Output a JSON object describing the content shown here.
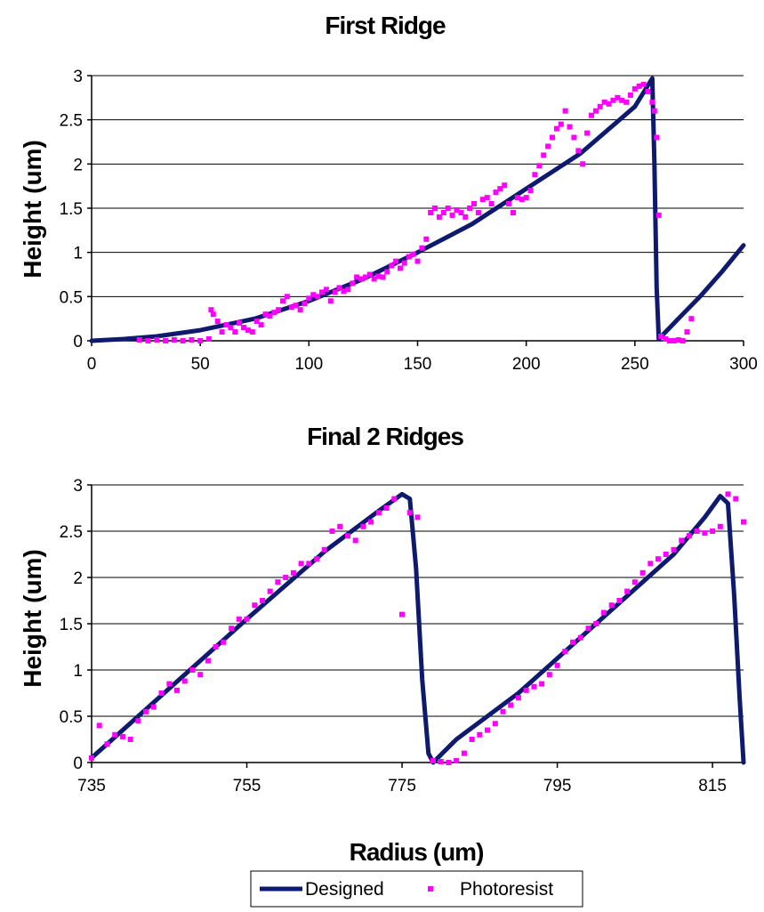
{
  "colors": {
    "designed": "#0d1a6e",
    "photoresist": "#ff00ff",
    "grid": "#000000"
  },
  "legend": {
    "placement": "bottom-center",
    "designed_label": "Designed",
    "photoresist_label": "Photoresist"
  },
  "shared_xlabel": "Radius (um)",
  "chart_data": [
    {
      "type": "line",
      "title": "First Ridge",
      "xlabel": "",
      "ylabel": "Height (um)",
      "xlim": [
        0,
        300
      ],
      "ylim": [
        0,
        3
      ],
      "xticks": [
        "0",
        "50",
        "100",
        "150",
        "200",
        "250",
        "300"
      ],
      "yticks": [
        "0",
        "0.5",
        "1",
        "1.5",
        "2",
        "2.5",
        "3"
      ],
      "grid": "horizontal",
      "series": [
        {
          "name": "Designed",
          "style": "line",
          "x": [
            0,
            15,
            30,
            50,
            75,
            100,
            125,
            150,
            175,
            200,
            225,
            250,
            258,
            259,
            260,
            261,
            270,
            280,
            290,
            300
          ],
          "y": [
            0,
            0.02,
            0.05,
            0.12,
            0.25,
            0.45,
            0.7,
            1.0,
            1.32,
            1.72,
            2.12,
            2.65,
            2.97,
            2.0,
            0.6,
            0.02,
            0.25,
            0.5,
            0.78,
            1.08
          ]
        },
        {
          "name": "Photoresist",
          "style": "scatter",
          "x": [
            22,
            26,
            30,
            34,
            38,
            42,
            46,
            50,
            54,
            55,
            56,
            58,
            60,
            62,
            64,
            66,
            68,
            70,
            72,
            74,
            76,
            78,
            80,
            82,
            84,
            86,
            88,
            90,
            92,
            94,
            96,
            98,
            100,
            102,
            104,
            106,
            108,
            110,
            112,
            114,
            116,
            118,
            120,
            122,
            124,
            126,
            128,
            130,
            132,
            134,
            136,
            138,
            140,
            142,
            144,
            146,
            148,
            150,
            152,
            154,
            156,
            158,
            160,
            162,
            164,
            166,
            168,
            170,
            172,
            174,
            176,
            178,
            180,
            182,
            184,
            186,
            188,
            190,
            192,
            194,
            196,
            198,
            200,
            202,
            204,
            206,
            208,
            210,
            212,
            214,
            216,
            218,
            220,
            222,
            224,
            226,
            228,
            230,
            232,
            234,
            236,
            238,
            240,
            242,
            244,
            246,
            248,
            250,
            252,
            254,
            256,
            258,
            259,
            260,
            261,
            262,
            264,
            266,
            268,
            270,
            272,
            274,
            276
          ],
          "y": [
            0.01,
            0.0,
            0.01,
            0.0,
            0.01,
            0.0,
            0.01,
            0.0,
            0.02,
            0.35,
            0.3,
            0.22,
            0.1,
            0.18,
            0.15,
            0.1,
            0.2,
            0.15,
            0.12,
            0.1,
            0.22,
            0.18,
            0.3,
            0.28,
            0.32,
            0.35,
            0.45,
            0.5,
            0.38,
            0.4,
            0.35,
            0.42,
            0.48,
            0.52,
            0.5,
            0.55,
            0.58,
            0.45,
            0.55,
            0.6,
            0.56,
            0.58,
            0.65,
            0.72,
            0.7,
            0.72,
            0.75,
            0.7,
            0.73,
            0.72,
            0.78,
            0.85,
            0.9,
            0.82,
            0.88,
            0.95,
            0.98,
            0.9,
            1.05,
            1.15,
            1.45,
            1.5,
            1.4,
            1.45,
            1.5,
            1.42,
            1.48,
            1.45,
            1.4,
            1.5,
            1.55,
            1.45,
            1.6,
            1.62,
            1.55,
            1.68,
            1.72,
            1.76,
            1.55,
            1.45,
            1.62,
            1.6,
            1.62,
            1.7,
            1.88,
            1.98,
            2.1,
            2.2,
            2.3,
            2.4,
            2.45,
            2.6,
            2.42,
            2.3,
            2.15,
            2.0,
            2.35,
            2.55,
            2.6,
            2.65,
            2.7,
            2.68,
            2.72,
            2.75,
            2.72,
            2.7,
            2.78,
            2.85,
            2.88,
            2.9,
            2.82,
            2.7,
            2.6,
            2.3,
            1.42,
            0.05,
            0.02,
            0.0,
            0.0,
            0.01,
            0.0,
            0.1,
            0.25
          ]
        }
      ]
    },
    {
      "type": "line",
      "title": "Final 2 Ridges",
      "xlabel": "Radius (um)",
      "ylabel": "Height (um)",
      "xlim": [
        735,
        819
      ],
      "ylim": [
        0,
        3
      ],
      "xticks": [
        "735",
        "755",
        "775",
        "795",
        "815"
      ],
      "yticks": [
        "0",
        "0.5",
        "1",
        "1.5",
        "2",
        "2.5",
        "3"
      ],
      "grid": "horizontal",
      "series": [
        {
          "name": "Designed",
          "style": "line",
          "x": [
            735,
            745,
            755,
            765,
            772,
            775,
            776,
            776.8,
            777.6,
            778.4,
            779,
            782,
            790,
            800,
            810,
            814,
            816,
            817,
            817.8,
            818.5,
            819
          ],
          "y": [
            0.05,
            0.8,
            1.55,
            2.28,
            2.72,
            2.9,
            2.85,
            2.1,
            0.9,
            0.1,
            0.0,
            0.25,
            0.75,
            1.5,
            2.25,
            2.65,
            2.88,
            2.8,
            1.8,
            0.7,
            0.0
          ]
        },
        {
          "name": "Photoresist",
          "style": "scatter",
          "x": [
            735,
            736,
            737,
            738,
            739,
            740,
            741,
            742,
            743,
            744,
            745,
            746,
            747,
            748,
            749,
            750,
            751,
            752,
            753,
            754,
            755,
            756,
            757,
            758,
            759,
            760,
            761,
            762,
            763,
            764,
            765,
            766,
            767,
            768,
            769,
            770,
            771,
            772,
            773,
            774,
            775,
            776,
            777,
            779,
            780,
            781,
            782,
            783,
            784,
            785,
            786,
            787,
            788,
            789,
            790,
            791,
            792,
            793,
            794,
            795,
            796,
            797,
            798,
            799,
            800,
            801,
            802,
            803,
            804,
            805,
            806,
            807,
            808,
            809,
            810,
            811,
            812,
            813,
            814,
            815,
            816,
            817,
            818,
            819
          ],
          "y": [
            0.05,
            0.4,
            0.2,
            0.3,
            0.28,
            0.25,
            0.45,
            0.55,
            0.6,
            0.75,
            0.85,
            0.78,
            0.88,
            1.0,
            0.95,
            1.1,
            1.25,
            1.3,
            1.45,
            1.55,
            1.55,
            1.7,
            1.75,
            1.85,
            1.95,
            2.0,
            2.05,
            2.15,
            2.15,
            2.2,
            2.3,
            2.5,
            2.55,
            2.45,
            2.4,
            2.55,
            2.6,
            2.7,
            2.75,
            2.85,
            1.6,
            2.7,
            2.65,
            0.02,
            0.01,
            0.0,
            0.02,
            0.1,
            0.25,
            0.3,
            0.35,
            0.42,
            0.55,
            0.62,
            0.7,
            0.78,
            0.82,
            0.85,
            0.95,
            1.05,
            1.2,
            1.3,
            1.35,
            1.45,
            1.5,
            1.62,
            1.7,
            1.75,
            1.85,
            1.95,
            2.05,
            2.15,
            2.2,
            2.25,
            2.3,
            2.4,
            2.45,
            2.5,
            2.48,
            2.5,
            2.55,
            2.9,
            2.85,
            2.6
          ]
        }
      ]
    }
  ]
}
